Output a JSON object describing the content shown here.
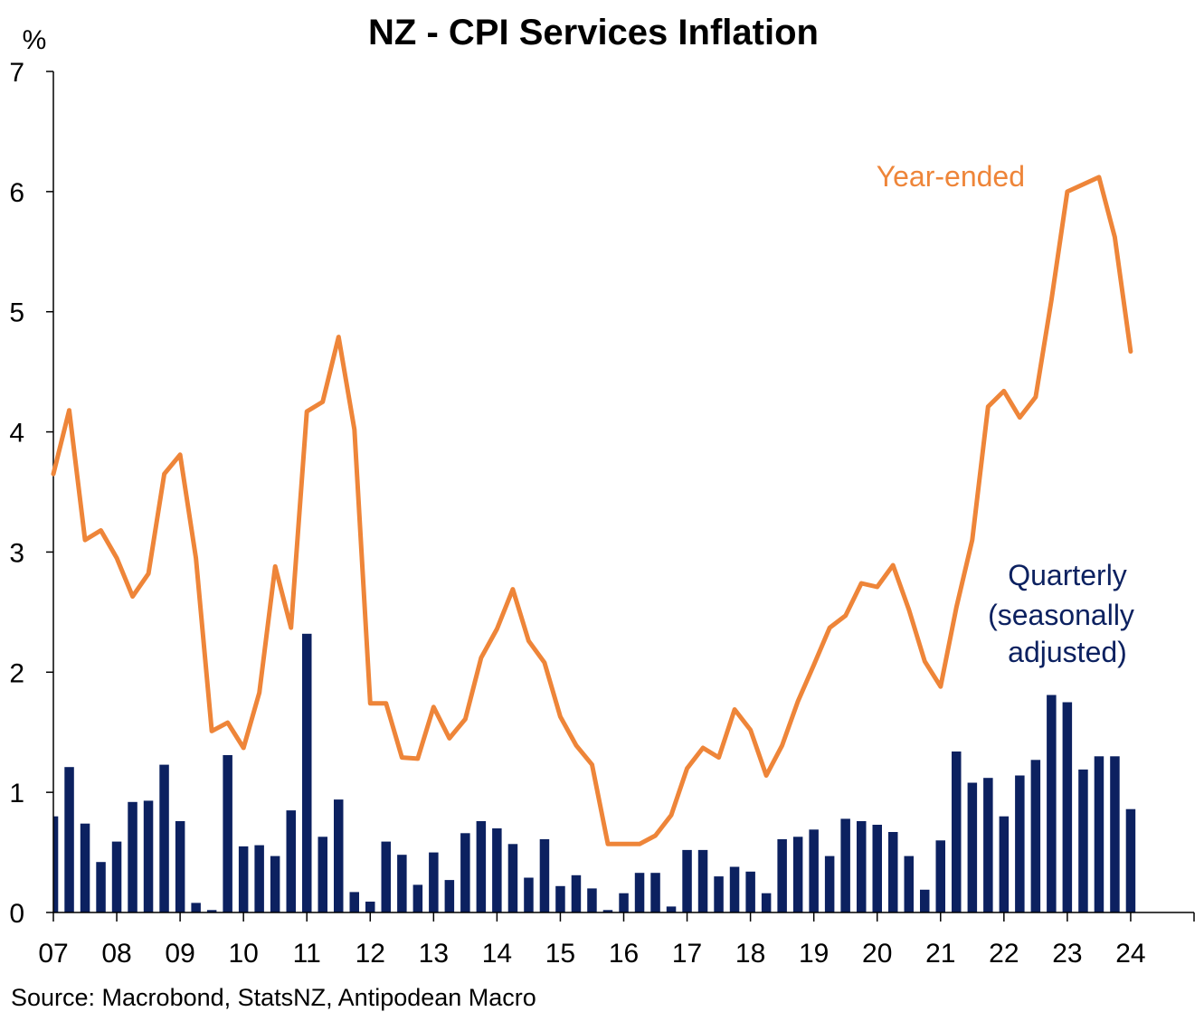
{
  "chart_data": {
    "type": "bar+line",
    "title": "NZ - CPI Services Inflation",
    "y_unit": "%",
    "ylim": [
      0,
      7
    ],
    "y_ticks": [
      0,
      1,
      2,
      3,
      4,
      5,
      6,
      7
    ],
    "x_tick_labels": [
      "07",
      "08",
      "09",
      "10",
      "11",
      "12",
      "13",
      "14",
      "15",
      "16",
      "17",
      "18",
      "19",
      "20",
      "21",
      "22",
      "23",
      "24"
    ],
    "x_start_year": 2007,
    "x_end_year": 2025,
    "source": "Source: Macrobond, StatsNZ, Antipodean Macro",
    "series": [
      {
        "name": "Year-ended",
        "type": "line",
        "color": "#EE8539",
        "x": [
          2007.0,
          2007.25,
          2007.5,
          2007.75,
          2008.0,
          2008.25,
          2008.5,
          2008.75,
          2009.0,
          2009.25,
          2009.5,
          2009.75,
          2010.0,
          2010.25,
          2010.5,
          2010.75,
          2011.0,
          2011.25,
          2011.5,
          2011.75,
          2012.0,
          2012.25,
          2012.5,
          2012.75,
          2013.0,
          2013.25,
          2013.5,
          2013.75,
          2014.0,
          2014.25,
          2014.5,
          2014.75,
          2015.0,
          2015.25,
          2015.5,
          2015.75,
          2016.0,
          2016.25,
          2016.5,
          2016.75,
          2017.0,
          2017.25,
          2017.5,
          2017.75,
          2018.0,
          2018.25,
          2018.5,
          2018.75,
          2019.0,
          2019.25,
          2019.5,
          2019.75,
          2020.0,
          2020.25,
          2020.5,
          2020.75,
          2021.0,
          2021.25,
          2021.5,
          2021.75,
          2022.0,
          2022.25,
          2022.5,
          2022.75,
          2023.0,
          2023.25,
          2023.5,
          2023.75,
          2024.0
        ],
        "values": [
          3.65,
          4.18,
          3.1,
          3.18,
          2.95,
          2.63,
          2.82,
          3.65,
          3.81,
          2.95,
          1.51,
          1.58,
          1.37,
          1.83,
          2.88,
          2.37,
          4.17,
          4.25,
          4.79,
          4.02,
          1.74,
          1.74,
          1.29,
          1.28,
          1.71,
          1.45,
          1.61,
          2.12,
          2.36,
          2.69,
          2.26,
          2.08,
          1.63,
          1.39,
          1.23,
          0.57,
          0.57,
          0.57,
          0.64,
          0.81,
          1.2,
          1.37,
          1.29,
          1.69,
          1.52,
          1.14,
          1.39,
          1.76,
          2.06,
          2.37,
          2.47,
          2.74,
          2.71,
          2.89,
          2.52,
          2.09,
          1.88,
          2.54,
          3.1,
          4.21,
          4.34,
          4.12,
          4.29,
          5.1,
          6.0,
          6.06,
          6.12,
          5.62,
          4.67
        ]
      },
      {
        "name": "Quarterly (seasonally adjusted)",
        "type": "bar",
        "color": "#0C2160",
        "x": [
          2007.0,
          2007.25,
          2007.5,
          2007.75,
          2008.0,
          2008.25,
          2008.5,
          2008.75,
          2009.0,
          2009.25,
          2009.5,
          2009.75,
          2010.0,
          2010.25,
          2010.5,
          2010.75,
          2011.0,
          2011.25,
          2011.5,
          2011.75,
          2012.0,
          2012.25,
          2012.5,
          2012.75,
          2013.0,
          2013.25,
          2013.5,
          2013.75,
          2014.0,
          2014.25,
          2014.5,
          2014.75,
          2015.0,
          2015.25,
          2015.5,
          2015.75,
          2016.0,
          2016.25,
          2016.5,
          2016.75,
          2017.0,
          2017.25,
          2017.5,
          2017.75,
          2018.0,
          2018.25,
          2018.5,
          2018.75,
          2019.0,
          2019.25,
          2019.5,
          2019.75,
          2020.0,
          2020.25,
          2020.5,
          2020.75,
          2021.0,
          2021.25,
          2021.5,
          2021.75,
          2022.0,
          2022.25,
          2022.5,
          2022.75,
          2023.0,
          2023.25,
          2023.5,
          2023.75,
          2024.0
        ],
        "values": [
          0.8,
          1.21,
          0.74,
          0.42,
          0.59,
          0.92,
          0.93,
          1.23,
          0.76,
          0.08,
          0.02,
          1.31,
          0.55,
          0.56,
          0.47,
          0.85,
          2.32,
          0.63,
          0.94,
          0.17,
          0.09,
          0.59,
          0.48,
          0.23,
          0.5,
          0.27,
          0.66,
          0.76,
          0.7,
          0.57,
          0.29,
          0.61,
          0.22,
          0.31,
          0.2,
          0.02,
          0.16,
          0.33,
          0.33,
          0.05,
          0.52,
          0.52,
          0.3,
          0.38,
          0.34,
          0.16,
          0.61,
          0.63,
          0.69,
          0.47,
          0.78,
          0.76,
          0.73,
          0.67,
          0.47,
          0.19,
          0.6,
          1.34,
          1.08,
          1.12,
          0.8,
          1.14,
          1.27,
          1.81,
          1.75,
          1.19,
          1.3,
          1.3,
          0.86
        ]
      }
    ],
    "labels": {
      "year_ended": "Year-ended",
      "quarterly_lines": [
        "Quarterly",
        "(seasonally",
        "adjusted)"
      ]
    }
  }
}
